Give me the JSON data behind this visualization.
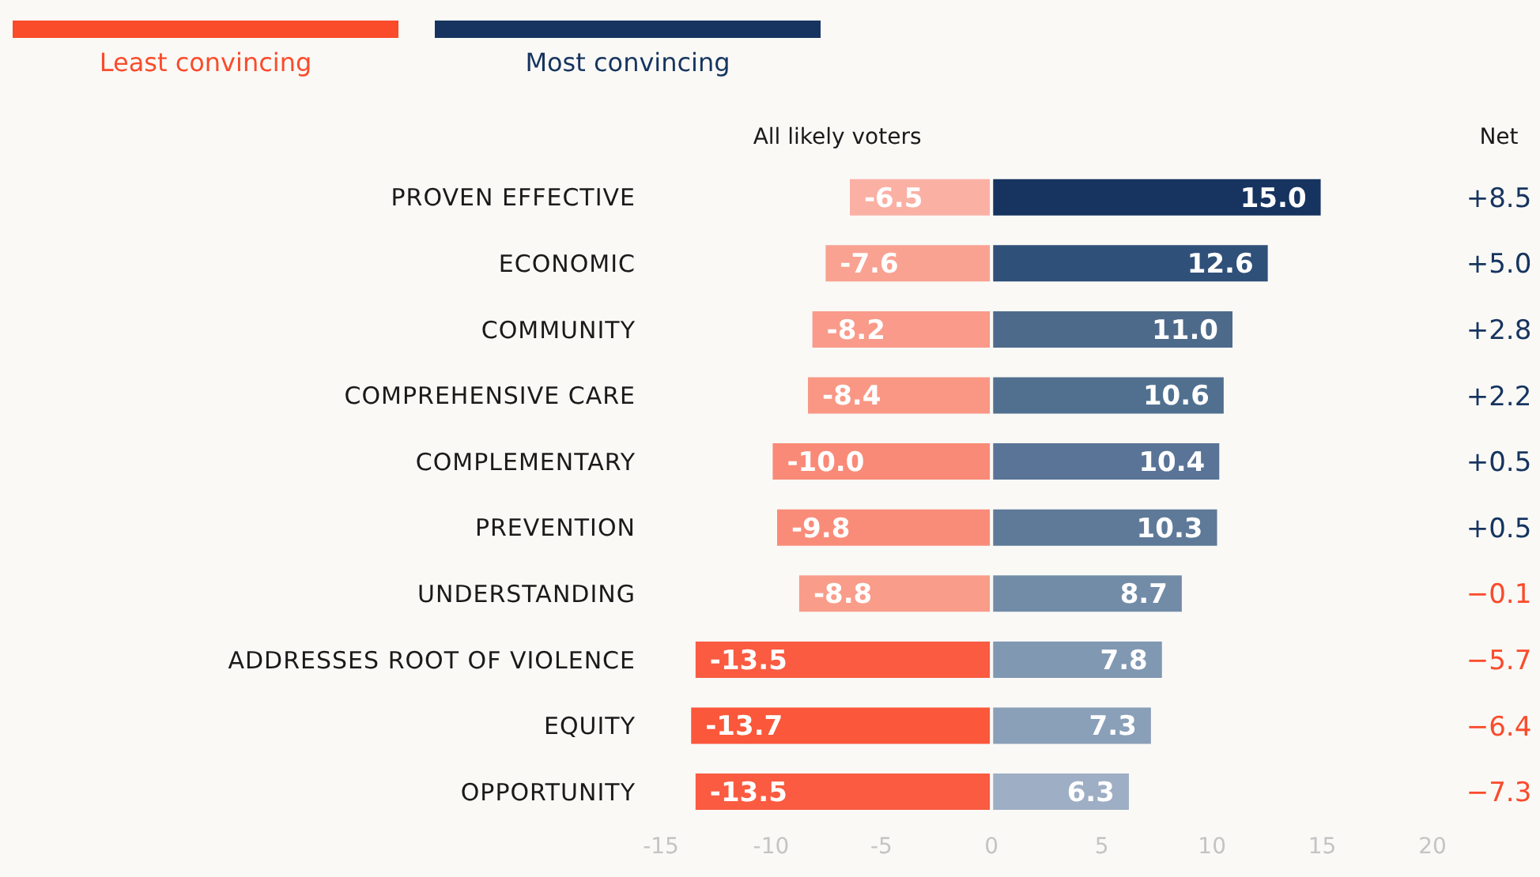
{
  "chart_data": {
    "type": "bar",
    "orientation": "horizontal",
    "stacked": true,
    "categories": [
      "PROVEN EFFECTIVE",
      "ECONOMIC",
      "COMMUNITY",
      "COMPREHENSIVE CARE",
      "COMPLEMENTARY",
      "PREVENTION",
      "UNDERSTANDING",
      "ADDRESSES ROOT OF VIOLENCE",
      "EQUITY",
      "OPPORTUNITY"
    ],
    "series": [
      {
        "name": "Least convincing",
        "color": "#fa4b2b",
        "values": [
          -6.5,
          -7.6,
          -8.2,
          -8.4,
          -10.0,
          -9.8,
          -8.8,
          -13.5,
          -13.7,
          -13.5
        ],
        "colors": [
          "#fbb0a4",
          "#f9a291",
          "#f99a8a",
          "#f99784",
          "#f98a77",
          "#f98c79",
          "#f99c8a",
          "#fa5b41",
          "#fb573a",
          "#fa5b41"
        ],
        "value_labels": [
          "-6.5",
          "-7.6",
          "-8.2",
          "-8.4",
          "-10.0",
          "-9.8",
          "-8.8",
          "-13.5",
          "-13.7",
          "-13.5"
        ]
      },
      {
        "name": "Most convincing",
        "color": "#16345f",
        "values": [
          15.0,
          12.6,
          11.0,
          10.6,
          10.4,
          10.3,
          8.7,
          7.8,
          7.3,
          6.3
        ],
        "colors": [
          "#16345f",
          "#2f5079",
          "#4e6a8b",
          "#51708f",
          "#5a7497",
          "#5e7a98",
          "#728ca8",
          "#8198b2",
          "#8a9fb8",
          "#9eaec4"
        ],
        "value_labels": [
          "15.0",
          "12.6",
          "11.0",
          "10.6",
          "10.4",
          "10.3",
          "8.7",
          "7.8",
          "7.3",
          "6.3"
        ]
      }
    ],
    "xlim": [
      -15,
      20
    ],
    "xticks": [
      -15,
      -10,
      -5,
      0,
      5,
      10,
      15,
      20
    ],
    "legend": "top left",
    "annotations": [
      "All likely voters",
      "Net",
      "+8.5",
      "+5.0",
      "+2.8",
      "+2.2",
      "+0.5",
      "+0.5",
      "−0.1",
      "−5.7",
      "−6.4",
      "−7.3"
    ]
  }
}
